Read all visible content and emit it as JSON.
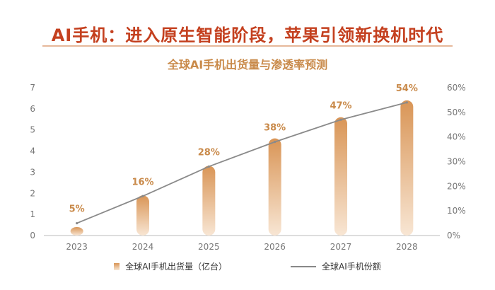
{
  "title": "AI手机：进入原生智能阶段，苹果引领新换机时代",
  "colors": {
    "title": "#c4401f",
    "subtitle": "#c98a4a",
    "divider": "#e6b89a",
    "bar_top": "#d99556",
    "bar_bottom": "#f8e6d4",
    "line": "#8a8a8a",
    "data_label": "#c98a4a"
  },
  "chart_data": {
    "type": "bar+line",
    "title": "全球AI手机出货量与渗透率预测",
    "categories": [
      "2023",
      "2024",
      "2025",
      "2026",
      "2027",
      "2028"
    ],
    "series": [
      {
        "name": "全球AI手机出货量（亿台）",
        "type": "bar",
        "axis": "left",
        "values": [
          0.4,
          1.9,
          3.3,
          4.6,
          5.6,
          6.4
        ]
      },
      {
        "name": "全球AI手机份额",
        "type": "line",
        "axis": "right",
        "values": [
          5,
          16,
          28,
          38,
          47,
          54
        ],
        "data_labels": [
          "5%",
          "16%",
          "28%",
          "38%",
          "47%",
          "54%"
        ]
      }
    ],
    "y_left": {
      "min": 0,
      "max": 7,
      "ticks": [
        "0",
        "1",
        "2",
        "3",
        "4",
        "5",
        "6",
        "7"
      ]
    },
    "y_right": {
      "min": 0,
      "max": 60,
      "ticks": [
        "0%",
        "10%",
        "20%",
        "30%",
        "40%",
        "50%",
        "60%"
      ]
    },
    "grid": false,
    "legend_position": "bottom"
  }
}
